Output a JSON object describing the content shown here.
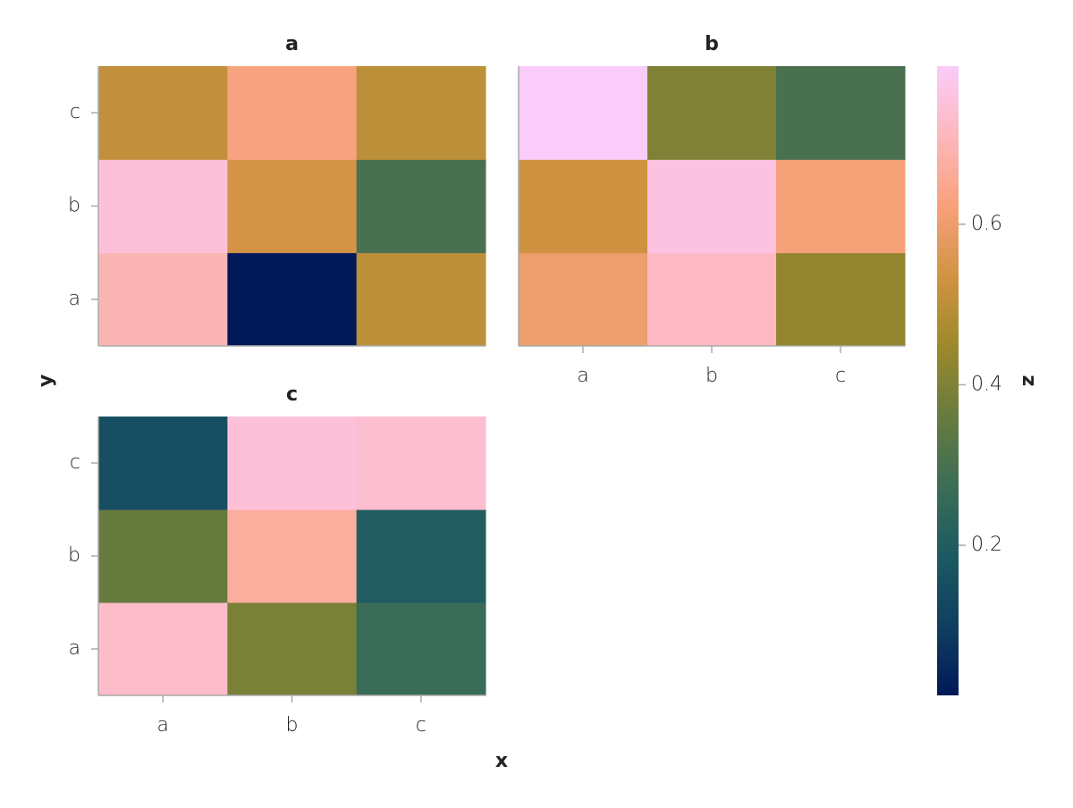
{
  "chart_data": {
    "type": "heatmap",
    "xlabel": "x",
    "ylabel": "y",
    "colorbar_label": "z",
    "x": [
      "a",
      "b",
      "c"
    ],
    "y": [
      "a",
      "b",
      "c"
    ],
    "zlim": [
      0.013,
      0.797
    ],
    "zticks": [
      0.2,
      0.4,
      0.6
    ],
    "colormap": [
      "#011959",
      "#103f60",
      "#1c5a62",
      "#3c6d56",
      "#687b3e",
      "#9d892b",
      "#d29343",
      "#f8a17b",
      "#fdb7bc",
      "#faccfa"
    ],
    "facets": [
      {
        "title": "a",
        "z": [
          [
            0.7,
            0.013,
            0.5
          ],
          [
            0.75,
            0.54,
            0.3
          ],
          [
            0.51,
            0.63,
            0.5
          ]
        ]
      },
      {
        "title": "b",
        "z": [
          [
            0.6,
            0.72,
            0.43
          ],
          [
            0.53,
            0.76,
            0.62
          ],
          [
            0.797,
            0.4,
            0.3
          ]
        ]
      },
      {
        "title": "c",
        "z": [
          [
            0.73,
            0.39,
            0.27
          ],
          [
            0.36,
            0.67,
            0.2
          ],
          [
            0.15,
            0.75,
            0.74
          ]
        ]
      }
    ]
  }
}
